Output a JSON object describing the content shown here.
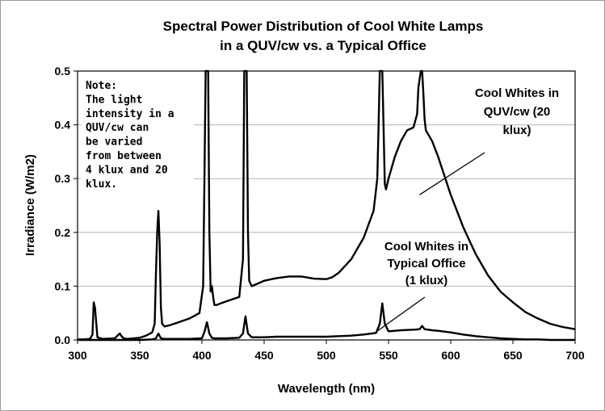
{
  "chart_data": {
    "type": "line",
    "title_lines": [
      "Spectral Power Distribution of Cool White Lamps",
      "in a QUV/cw vs. a Typical Office"
    ],
    "xlabel": "Wavelength (nm)",
    "ylabel": "Irradiance (W/m2)",
    "xlim": [
      300,
      700
    ],
    "ylim": [
      0,
      0.5
    ],
    "x_ticks": [
      "300",
      "350",
      "400",
      "450",
      "500",
      "550",
      "600",
      "650",
      "700"
    ],
    "y_ticks": [
      "0.0",
      "0.1",
      "0.2",
      "0.3",
      "0.4",
      "0.5"
    ],
    "grid": "horizontal",
    "note_lines": [
      "Note:",
      "The light",
      "intensity in a",
      "QUV/cw can",
      "be varied",
      "from between",
      "4 klux and 20",
      "klux."
    ],
    "annotations": [
      {
        "lines": [
          "Cool Whites in",
          "QUV/cw (20",
          "klux)"
        ],
        "points_to": [
          575,
          0.27
        ]
      },
      {
        "lines": [
          "Cool Whites in",
          "Typical Office",
          "(1 klux)"
        ],
        "points_to": [
          540,
          0.015
        ]
      }
    ],
    "series": [
      {
        "x": [
          300,
          305,
          310,
          312,
          313,
          314,
          316,
          320,
          330,
          333,
          334,
          335,
          337,
          340,
          350,
          355,
          360,
          362,
          363,
          364,
          365,
          366,
          367,
          368,
          370,
          375,
          380,
          390,
          398,
          401,
          402,
          403,
          404,
          405,
          406,
          407,
          408,
          409,
          410,
          412,
          415,
          420,
          430,
          433,
          434,
          435,
          436,
          437,
          438,
          440,
          445,
          450,
          460,
          470,
          480,
          490,
          500,
          505,
          510,
          520,
          530,
          538,
          541,
          542,
          543,
          544,
          545,
          546,
          547,
          548,
          550,
          555,
          560,
          565,
          570,
          573,
          574,
          576,
          577,
          578,
          579,
          580,
          585,
          590,
          600,
          610,
          620,
          630,
          640,
          650,
          660,
          670,
          680,
          690,
          700
        ],
        "y": [
          0.001,
          0.001,
          0.002,
          0.01,
          0.07,
          0.06,
          0.005,
          0.002,
          0.003,
          0.01,
          0.012,
          0.008,
          0.003,
          0.002,
          0.004,
          0.008,
          0.014,
          0.03,
          0.12,
          0.2,
          0.24,
          0.18,
          0.06,
          0.03,
          0.025,
          0.028,
          0.032,
          0.04,
          0.05,
          0.1,
          0.3,
          0.5,
          0.5,
          0.5,
          0.2,
          0.09,
          0.1,
          0.08,
          0.065,
          0.065,
          0.068,
          0.072,
          0.08,
          0.15,
          0.5,
          0.5,
          0.5,
          0.2,
          0.11,
          0.1,
          0.105,
          0.11,
          0.115,
          0.118,
          0.118,
          0.114,
          0.113,
          0.117,
          0.125,
          0.15,
          0.19,
          0.24,
          0.3,
          0.4,
          0.5,
          0.5,
          0.5,
          0.4,
          0.29,
          0.28,
          0.3,
          0.34,
          0.37,
          0.39,
          0.395,
          0.42,
          0.47,
          0.5,
          0.5,
          0.46,
          0.41,
          0.39,
          0.37,
          0.34,
          0.27,
          0.21,
          0.16,
          0.12,
          0.09,
          0.07,
          0.052,
          0.04,
          0.03,
          0.024,
          0.02
        ]
      },
      {
        "x": [
          300,
          310,
          320,
          330,
          340,
          350,
          360,
          363,
          365,
          367,
          370,
          380,
          390,
          400,
          402,
          404,
          406,
          408,
          410,
          420,
          430,
          433,
          435,
          437,
          440,
          450,
          460,
          470,
          480,
          490,
          500,
          510,
          520,
          530,
          540,
          543,
          545,
          547,
          550,
          560,
          570,
          575,
          577,
          579,
          585,
          590,
          600,
          610,
          620,
          630,
          640,
          650,
          660,
          670,
          680,
          690,
          700
        ],
        "y": [
          0.0,
          0.0,
          0.0,
          0.0,
          0.0,
          0.0,
          0.001,
          0.003,
          0.012,
          0.003,
          0.002,
          0.002,
          0.002,
          0.003,
          0.015,
          0.033,
          0.012,
          0.004,
          0.003,
          0.003,
          0.004,
          0.012,
          0.044,
          0.012,
          0.005,
          0.005,
          0.006,
          0.006,
          0.006,
          0.006,
          0.006,
          0.007,
          0.008,
          0.01,
          0.013,
          0.03,
          0.068,
          0.03,
          0.016,
          0.018,
          0.019,
          0.02,
          0.026,
          0.02,
          0.018,
          0.017,
          0.014,
          0.01,
          0.007,
          0.005,
          0.003,
          0.002,
          0.001,
          0.001,
          0.0,
          0.0,
          0.0
        ]
      }
    ]
  }
}
